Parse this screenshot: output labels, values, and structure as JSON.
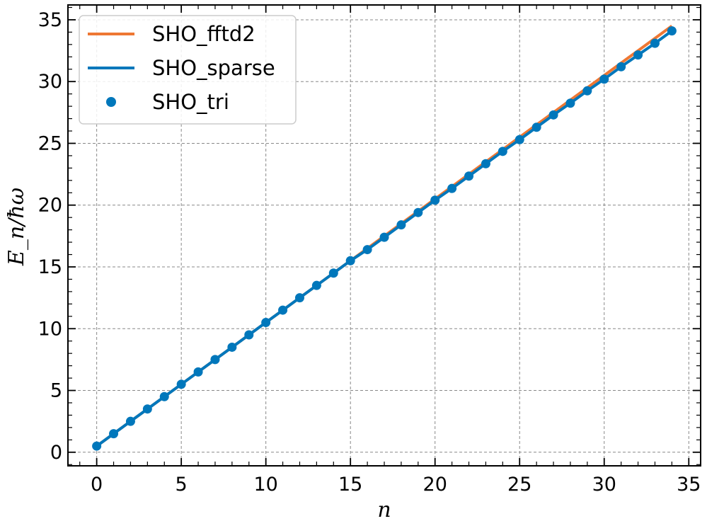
{
  "chart_data": {
    "type": "line",
    "xlabel": "n",
    "ylabel": "E_n/ħω",
    "xlim": [
      -1.7,
      35.7
    ],
    "ylim": [
      -1.1,
      36.2
    ],
    "xticks": [
      0,
      5,
      10,
      15,
      20,
      25,
      30,
      35
    ],
    "yticks": [
      0,
      5,
      10,
      15,
      20,
      25,
      30,
      35
    ],
    "grid": true,
    "legend_position": "top-left",
    "series": [
      {
        "name": "SHO_fftd2",
        "style": "line",
        "color": "#ee7733",
        "x": [
          0,
          1,
          2,
          3,
          4,
          5,
          6,
          7,
          8,
          9,
          10,
          11,
          12,
          13,
          14,
          15,
          16,
          17,
          18,
          19,
          20,
          21,
          22,
          23,
          24,
          25,
          26,
          27,
          28,
          29,
          30,
          31,
          32,
          33,
          34
        ],
        "y": [
          0.5,
          1.5,
          2.5,
          3.5,
          4.5,
          5.5,
          6.5,
          7.5,
          8.5,
          9.5,
          10.5,
          11.5,
          12.5,
          13.5,
          14.5,
          15.5,
          16.5,
          17.5,
          18.5,
          19.5,
          20.5,
          21.5,
          22.5,
          23.5,
          24.5,
          25.5,
          26.5,
          27.5,
          28.5,
          29.5,
          30.5,
          31.5,
          32.5,
          33.5,
          34.5
        ]
      },
      {
        "name": "SHO_sparse",
        "style": "line",
        "color": "#0077bb",
        "x": [
          0,
          1,
          2,
          3,
          4,
          5,
          6,
          7,
          8,
          9,
          10,
          11,
          12,
          13,
          14,
          15,
          16,
          17,
          18,
          19,
          20,
          21,
          22,
          23,
          24,
          25,
          26,
          27,
          28,
          29,
          30,
          31,
          32,
          33,
          34
        ],
        "y": [
          0.5,
          1.5,
          2.5,
          3.5,
          4.5,
          5.5,
          6.5,
          7.5,
          8.5,
          9.5,
          10.5,
          11.5,
          12.5,
          13.5,
          14.5,
          15.5,
          16.4,
          17.4,
          18.4,
          19.4,
          20.4,
          21.35,
          22.35,
          23.35,
          24.35,
          25.3,
          26.3,
          27.3,
          28.25,
          29.25,
          30.2,
          31.2,
          32.15,
          33.1,
          34.1
        ]
      },
      {
        "name": "SHO_tri",
        "style": "markers",
        "color": "#0077bb",
        "x": [
          0,
          1,
          2,
          3,
          4,
          5,
          6,
          7,
          8,
          9,
          10,
          11,
          12,
          13,
          14,
          15,
          16,
          17,
          18,
          19,
          20,
          21,
          22,
          23,
          24,
          25,
          26,
          27,
          28,
          29,
          30,
          31,
          32,
          33,
          34
        ],
        "y": [
          0.5,
          1.5,
          2.5,
          3.5,
          4.5,
          5.5,
          6.5,
          7.5,
          8.5,
          9.5,
          10.5,
          11.5,
          12.5,
          13.5,
          14.5,
          15.5,
          16.4,
          17.4,
          18.4,
          19.4,
          20.4,
          21.35,
          22.35,
          23.35,
          24.35,
          25.3,
          26.3,
          27.3,
          28.25,
          29.25,
          30.2,
          31.2,
          32.15,
          33.1,
          34.1
        ]
      }
    ]
  }
}
